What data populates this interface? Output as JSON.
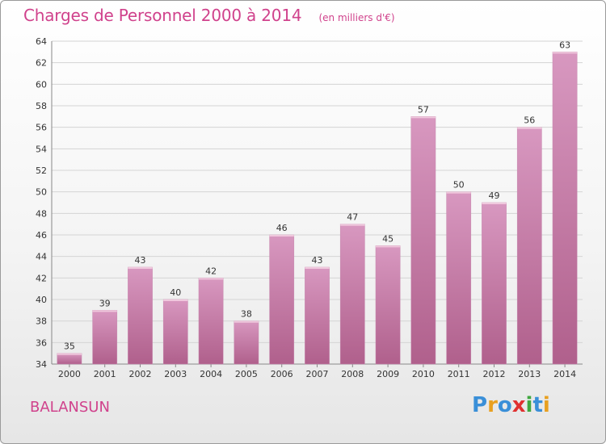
{
  "chart_data": {
    "type": "bar",
    "title": "Charges de Personnel 2000 à 2014",
    "subtitle": "(en milliers d'€)",
    "categories": [
      "2000",
      "2001",
      "2002",
      "2003",
      "2004",
      "2005",
      "2006",
      "2007",
      "2008",
      "2009",
      "2010",
      "2011",
      "2012",
      "2013",
      "2014"
    ],
    "values": [
      35,
      39,
      43,
      40,
      42,
      38,
      46,
      43,
      47,
      45,
      57,
      50,
      49,
      56,
      63
    ],
    "ylim": [
      34,
      64
    ],
    "yticks": [
      34,
      36,
      38,
      40,
      42,
      44,
      46,
      48,
      50,
      52,
      54,
      56,
      58,
      60,
      62,
      64
    ],
    "grid": true,
    "bar_color": "#d898c0",
    "bar_color_dark": "#b0608c",
    "xlabel": "",
    "ylabel": ""
  },
  "footer": {
    "place_name": "BALANSUN",
    "brand": "Proxiti",
    "brand_letters": [
      {
        "ch": "P",
        "color": "#3a8fd8"
      },
      {
        "ch": "r",
        "color": "#e8a020"
      },
      {
        "ch": "o",
        "color": "#3a8fd8"
      },
      {
        "ch": "x",
        "color": "#e03030"
      },
      {
        "ch": "i",
        "color": "#40a840"
      },
      {
        "ch": "t",
        "color": "#3a8fd8"
      },
      {
        "ch": "i",
        "color": "#e8a020"
      }
    ]
  }
}
